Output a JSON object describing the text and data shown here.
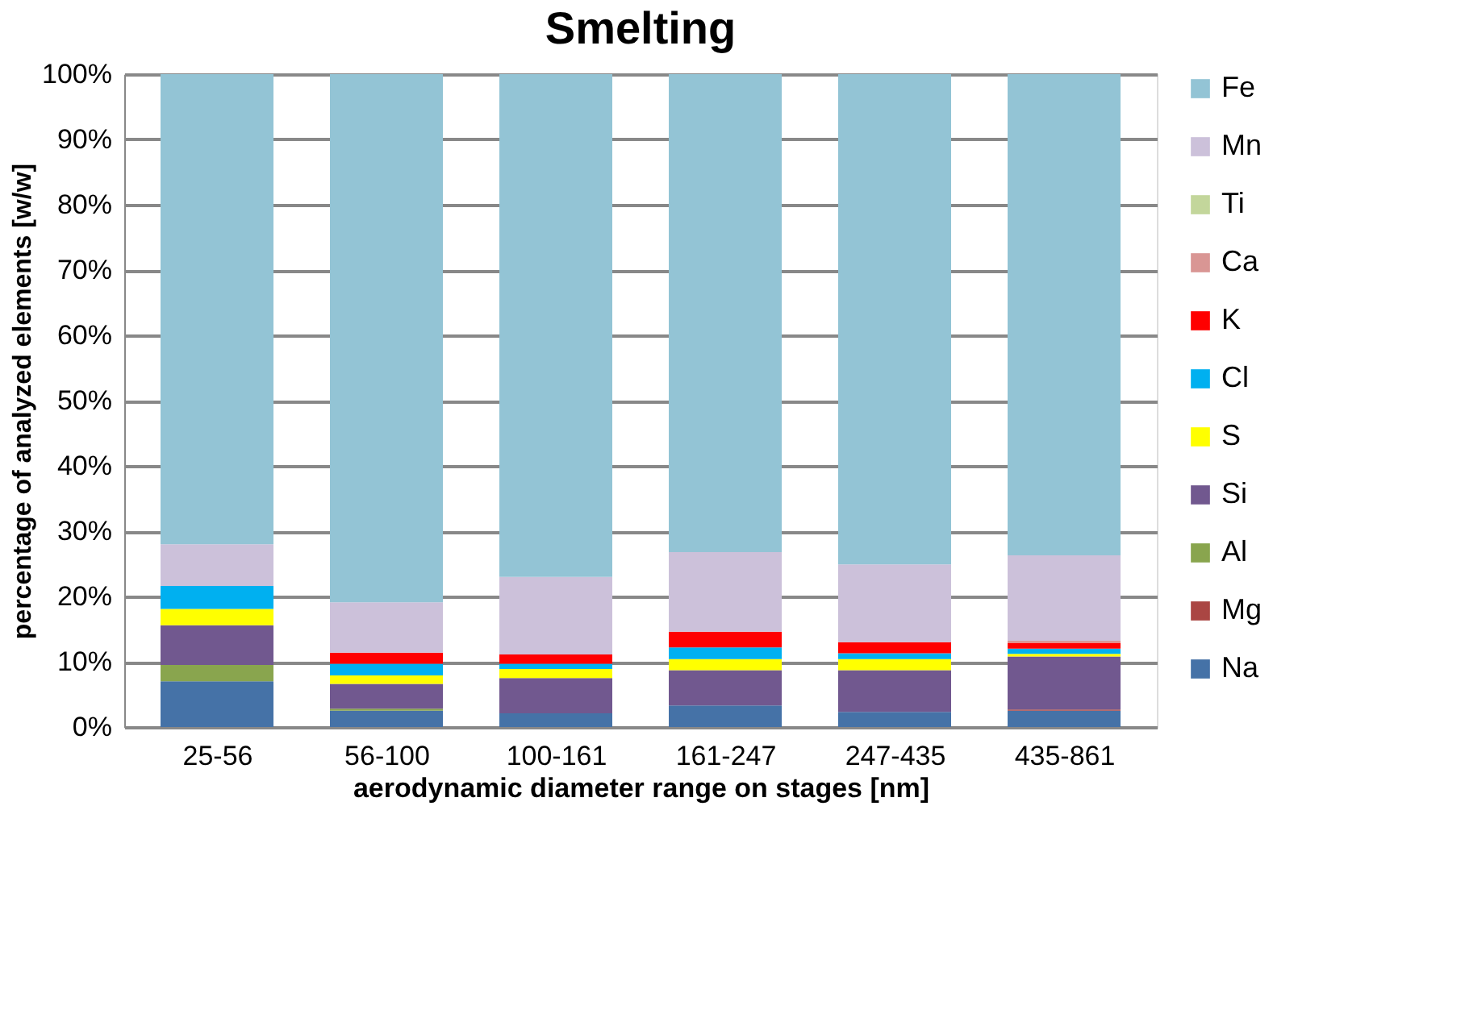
{
  "chart_data": {
    "type": "bar",
    "title": "Smelting",
    "xlabel": "aerodynamic diameter range on stages [nm]",
    "ylabel": "percentage of analyzed elements [w/w]",
    "categories": [
      "25-56",
      "56-100",
      "100-161",
      "161-247",
      "247-435",
      "435-861"
    ],
    "stacked": true,
    "series": [
      {
        "name": "Na",
        "color": "#4572a7",
        "values": [
          7.0,
          2.5,
          2.1,
          3.3,
          2.3,
          2.5
        ]
      },
      {
        "name": "Mg",
        "color": "#aa4643",
        "values": [
          0,
          0,
          0,
          0,
          0,
          0.2
        ]
      },
      {
        "name": "Al",
        "color": "#89a54e",
        "values": [
          2.5,
          0.3,
          0,
          0,
          0,
          0
        ]
      },
      {
        "name": "Si",
        "color": "#71588f",
        "values": [
          6.1,
          3.8,
          5.4,
          5.4,
          6.4,
          8.1
        ]
      },
      {
        "name": "S",
        "color": "#ffff00",
        "values": [
          2.5,
          1.3,
          1.4,
          1.7,
          1.7,
          0.4
        ]
      },
      {
        "name": "Cl",
        "color": "#00b0f0",
        "values": [
          3.5,
          1.8,
          0.8,
          1.8,
          0.9,
          0.8
        ]
      },
      {
        "name": "K",
        "color": "#ff0000",
        "values": [
          0,
          1.7,
          1.4,
          2.4,
          1.7,
          0.9
        ]
      },
      {
        "name": "Ca",
        "color": "#d99694",
        "values": [
          0,
          0,
          0,
          0,
          0,
          0.3
        ]
      },
      {
        "name": "Ti",
        "color": "#c3d69b",
        "values": [
          0,
          0,
          0,
          0,
          0,
          0
        ]
      },
      {
        "name": "Mn",
        "color": "#ccc1da",
        "values": [
          6.4,
          7.7,
          11.9,
          12.2,
          11.9,
          13.1
        ]
      },
      {
        "name": "Fe",
        "color": "#93c4d5",
        "values": [
          72.0,
          80.9,
          77.0,
          73.2,
          75.1,
          73.7
        ]
      }
    ],
    "ylim": [
      0,
      100
    ],
    "yticks": [
      {
        "value": 0,
        "label": "0%"
      },
      {
        "value": 10,
        "label": "10%"
      },
      {
        "value": 20,
        "label": "20%"
      },
      {
        "value": 30,
        "label": "30%"
      },
      {
        "value": 40,
        "label": "40%"
      },
      {
        "value": 50,
        "label": "50%"
      },
      {
        "value": 60,
        "label": "60%"
      },
      {
        "value": 70,
        "label": "70%"
      },
      {
        "value": 80,
        "label": "80%"
      },
      {
        "value": 90,
        "label": "90%"
      },
      {
        "value": 100,
        "label": "100%"
      }
    ],
    "grid": "y",
    "legend": "right"
  }
}
